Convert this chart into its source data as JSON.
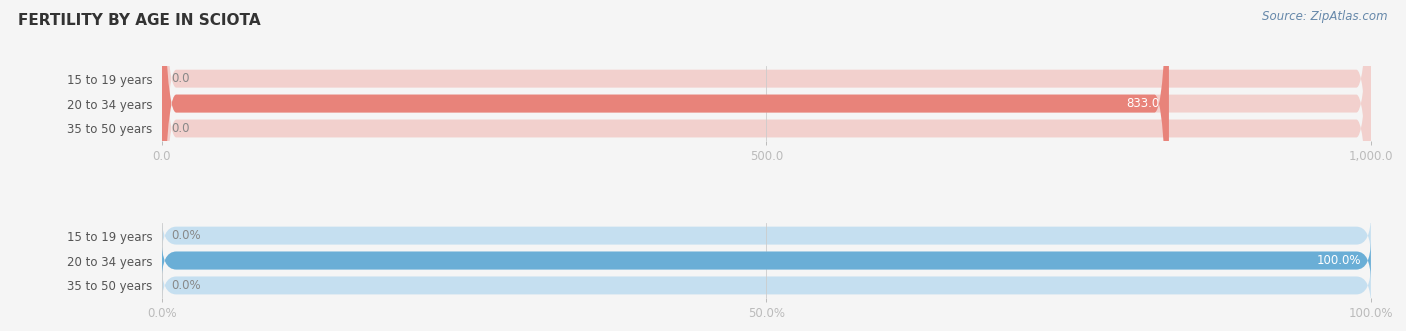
{
  "title": "FERTILITY BY AGE IN SCIOTA",
  "source": "Source: ZipAtlas.com",
  "top_chart": {
    "categories": [
      "15 to 19 years",
      "20 to 34 years",
      "35 to 50 years"
    ],
    "values": [
      0.0,
      833.0,
      0.0
    ],
    "xlim": [
      0,
      1000.0
    ],
    "xticks": [
      0.0,
      500.0,
      1000.0
    ],
    "xtick_labels": [
      "0.0",
      "500.0",
      "1,000.0"
    ],
    "bar_color": "#e8837a",
    "bar_bg_color": "#f2d0cd",
    "row_bg_color": "#efefef"
  },
  "bottom_chart": {
    "categories": [
      "15 to 19 years",
      "20 to 34 years",
      "35 to 50 years"
    ],
    "values": [
      0.0,
      100.0,
      0.0
    ],
    "xlim": [
      0,
      100.0
    ],
    "xticks": [
      0.0,
      50.0,
      100.0
    ],
    "xtick_labels": [
      "0.0%",
      "50.0%",
      "100.0%"
    ],
    "bar_color": "#6aaed6",
    "bar_bg_color": "#c5dff0",
    "row_bg_color": "#efefef"
  },
  "fig_bg_color": "#f5f5f5",
  "title_fontsize": 11,
  "label_fontsize": 8.5,
  "tick_fontsize": 8.5,
  "source_fontsize": 8.5,
  "value_label_fontsize": 8.5
}
